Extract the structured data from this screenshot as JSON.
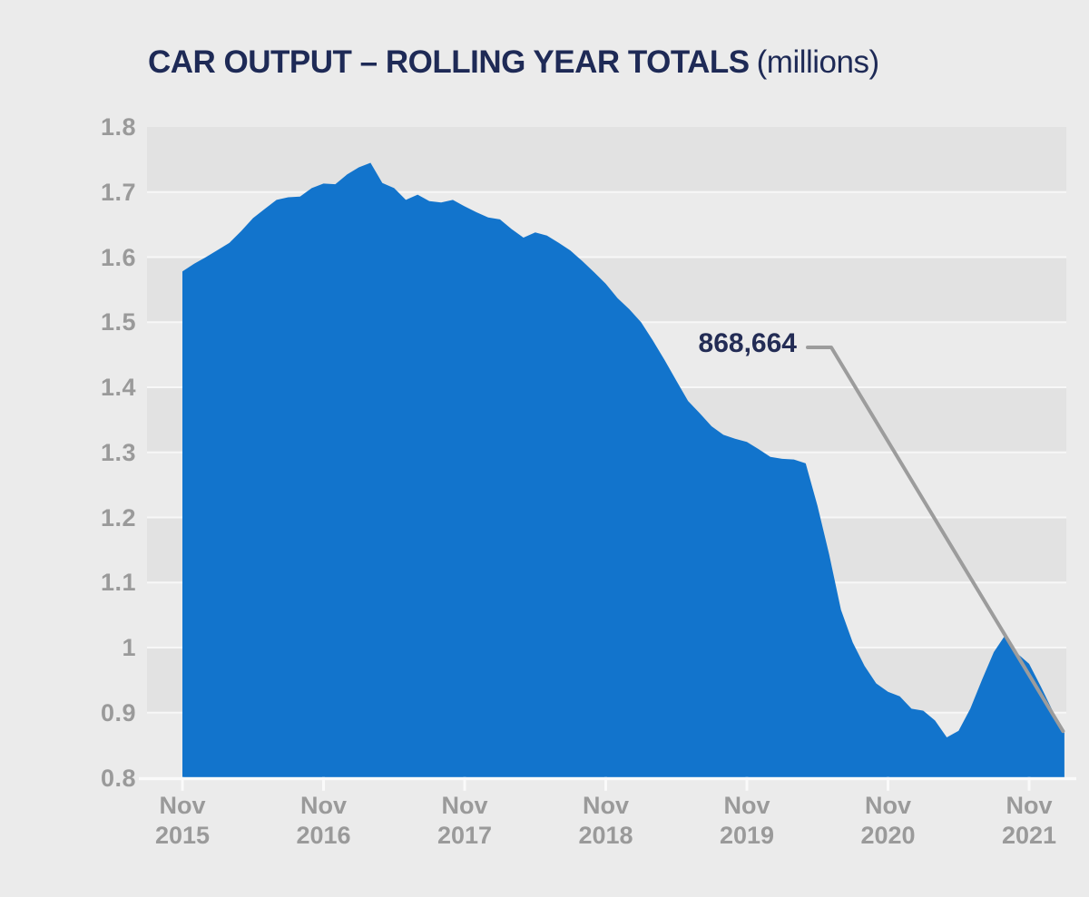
{
  "header": {
    "title_main": "CAR OUTPUT – ROLLING YEAR TOTALS",
    "title_suffix": "(millions)"
  },
  "chart_data": {
    "type": "area",
    "title": "CAR OUTPUT – ROLLING YEAR TOTALS",
    "title_suffix": "(millions)",
    "unit": "millions",
    "frequency": "monthly",
    "ylim": [
      0.8,
      1.8
    ],
    "grid": true,
    "y_ticks": [
      {
        "label": "1.8",
        "value": 1.8
      },
      {
        "label": "1.7",
        "value": 1.7
      },
      {
        "label": "1.6",
        "value": 1.6
      },
      {
        "label": "1.5",
        "value": 1.5
      },
      {
        "label": "1.4",
        "value": 1.4
      },
      {
        "label": "1.3",
        "value": 1.3
      },
      {
        "label": "1.2",
        "value": 1.2
      },
      {
        "label": "1.1",
        "value": 1.1
      },
      {
        "label": "1",
        "value": 1.0
      },
      {
        "label": "0.9",
        "value": 0.9
      },
      {
        "label": "0.8",
        "value": 0.8
      }
    ],
    "x_ticks": [
      {
        "line1": "Nov",
        "line2": "2015",
        "index": 0
      },
      {
        "line1": "Nov",
        "line2": "2016",
        "index": 12
      },
      {
        "line1": "Nov",
        "line2": "2017",
        "index": 24
      },
      {
        "line1": "Nov",
        "line2": "2018",
        "index": 36
      },
      {
        "line1": "Nov",
        "line2": "2019",
        "index": 48
      },
      {
        "line1": "Nov",
        "line2": "2020",
        "index": 60
      },
      {
        "line1": "Nov",
        "line2": "2021",
        "index": 72
      }
    ],
    "values": [
      1.578,
      1.59,
      1.6,
      1.611,
      1.622,
      1.64,
      1.66,
      1.674,
      1.688,
      1.692,
      1.693,
      1.706,
      1.713,
      1.712,
      1.727,
      1.738,
      1.745,
      1.714,
      1.706,
      1.688,
      1.696,
      1.686,
      1.684,
      1.688,
      1.678,
      1.669,
      1.661,
      1.658,
      1.643,
      1.63,
      1.638,
      1.633,
      1.622,
      1.61,
      1.594,
      1.577,
      1.559,
      1.537,
      1.52,
      1.5,
      1.472,
      1.442,
      1.41,
      1.379,
      1.36,
      1.34,
      1.327,
      1.321,
      1.316,
      1.305,
      1.293,
      1.29,
      1.289,
      1.283,
      1.218,
      1.143,
      1.058,
      1.008,
      0.972,
      0.945,
      0.932,
      0.925,
      0.906,
      0.903,
      0.888,
      0.862,
      0.872,
      0.906,
      0.951,
      0.993,
      1.02,
      0.991,
      0.975,
      0.94,
      0.903,
      0.868664
    ],
    "annotation": {
      "label": "868,664",
      "index": 75
    },
    "colors": {
      "area": "#1274cc",
      "title": "#1e2a56",
      "annotation": "#232c55",
      "axis_label": "#9a9a9a",
      "band_dark": "#e2e2e2",
      "background": "#ebebeb",
      "grid_line": "#f7f7f7",
      "axis_line": "#fafafa",
      "callout": "#9c9c9c"
    }
  }
}
